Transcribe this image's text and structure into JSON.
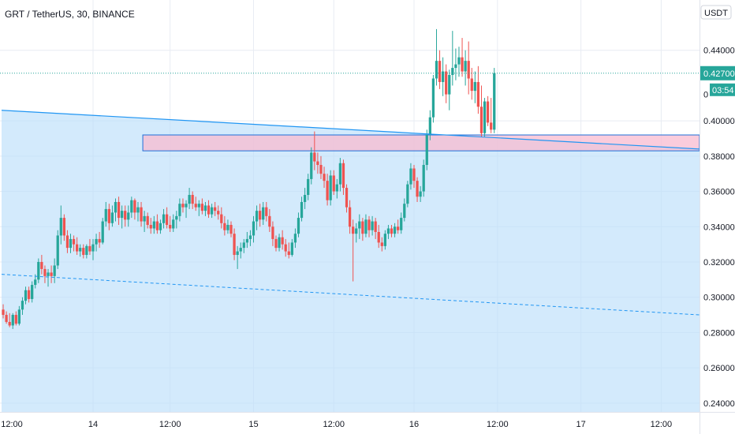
{
  "chart_data": {
    "type": "candlestick",
    "title": "GRT / TetherUS, 30, BINANCE",
    "currency_button": "USDT",
    "y_ticks": [
      "0.44000",
      "0.40000",
      "0.38000",
      "0.36000",
      "0.34000",
      "0.32000",
      "0.30000",
      "0.28000",
      "0.26000",
      "0.24000"
    ],
    "y_tick_values": [
      0.44,
      0.4,
      0.38,
      0.36,
      0.34,
      0.32,
      0.3,
      0.28,
      0.26,
      0.24
    ],
    "ylim": [
      0.235,
      0.4685
    ],
    "x_ticks": [
      "12:00",
      "14",
      "12:00",
      "15",
      "12:00",
      "16",
      "12:00",
      "17",
      "12:00"
    ],
    "x_tick_bars": [
      -1,
      28,
      52,
      78,
      103,
      128,
      154,
      180,
      205
    ],
    "bar_count_visible": 218,
    "last_price": "0.42700",
    "last_price_value": 0.427,
    "countdown": "03:54",
    "partial_price_label": "0",
    "colors": {
      "up": "#26a69a",
      "down": "#ef5350",
      "trendline": "#2196f3",
      "zone_fill": "#bbdefb",
      "resistance_fill": "#f8bbd0"
    },
    "resistance_zone": {
      "top": 0.392,
      "bottom": 0.383,
      "start_bar": 44
    },
    "trendline": {
      "start_bar": 0,
      "start_value": 0.406,
      "end_bar": 217,
      "end_value": 0.384
    },
    "support_line": {
      "start_bar": 0,
      "start_value": 0.313,
      "end_bar": 217,
      "end_value": 0.29
    },
    "candles": [
      [
        0.293,
        0.296,
        0.288,
        0.29
      ],
      [
        0.29,
        0.292,
        0.285,
        0.286
      ],
      [
        0.286,
        0.291,
        0.283,
        0.284
      ],
      [
        0.284,
        0.291,
        0.282,
        0.29
      ],
      [
        0.29,
        0.292,
        0.284,
        0.285
      ],
      [
        0.285,
        0.295,
        0.284,
        0.293
      ],
      [
        0.293,
        0.3,
        0.29,
        0.298
      ],
      [
        0.298,
        0.306,
        0.296,
        0.304
      ],
      [
        0.304,
        0.306,
        0.297,
        0.299
      ],
      [
        0.299,
        0.309,
        0.297,
        0.307
      ],
      [
        0.307,
        0.313,
        0.305,
        0.31
      ],
      [
        0.31,
        0.322,
        0.308,
        0.32
      ],
      [
        0.32,
        0.324,
        0.313,
        0.316
      ],
      [
        0.316,
        0.318,
        0.308,
        0.312
      ],
      [
        0.312,
        0.316,
        0.306,
        0.314
      ],
      [
        0.314,
        0.318,
        0.308,
        0.312
      ],
      [
        0.312,
        0.322,
        0.308,
        0.318
      ],
      [
        0.318,
        0.338,
        0.316,
        0.335
      ],
      [
        0.335,
        0.352,
        0.33,
        0.345
      ],
      [
        0.345,
        0.347,
        0.332,
        0.335
      ],
      [
        0.335,
        0.338,
        0.325,
        0.328
      ],
      [
        0.328,
        0.336,
        0.325,
        0.333
      ],
      [
        0.333,
        0.335,
        0.326,
        0.33
      ],
      [
        0.33,
        0.334,
        0.324,
        0.326
      ],
      [
        0.326,
        0.33,
        0.323,
        0.328
      ],
      [
        0.328,
        0.33,
        0.322,
        0.324
      ],
      [
        0.324,
        0.33,
        0.322,
        0.329
      ],
      [
        0.329,
        0.333,
        0.324,
        0.326
      ],
      [
        0.326,
        0.333,
        0.321,
        0.33
      ],
      [
        0.33,
        0.336,
        0.326,
        0.333
      ],
      [
        0.333,
        0.337,
        0.328,
        0.331
      ],
      [
        0.331,
        0.345,
        0.33,
        0.343
      ],
      [
        0.343,
        0.354,
        0.34,
        0.35
      ],
      [
        0.35,
        0.353,
        0.338,
        0.342
      ],
      [
        0.342,
        0.352,
        0.34,
        0.348
      ],
      [
        0.348,
        0.356,
        0.343,
        0.354
      ],
      [
        0.354,
        0.357,
        0.341,
        0.345
      ],
      [
        0.345,
        0.352,
        0.339,
        0.349
      ],
      [
        0.349,
        0.352,
        0.34,
        0.344
      ],
      [
        0.344,
        0.352,
        0.34,
        0.348
      ],
      [
        0.348,
        0.357,
        0.345,
        0.355
      ],
      [
        0.355,
        0.356,
        0.344,
        0.348
      ],
      [
        0.348,
        0.354,
        0.343,
        0.351
      ],
      [
        0.351,
        0.354,
        0.34,
        0.343
      ],
      [
        0.343,
        0.349,
        0.337,
        0.346
      ],
      [
        0.346,
        0.348,
        0.339,
        0.341
      ],
      [
        0.341,
        0.345,
        0.336,
        0.339
      ],
      [
        0.339,
        0.346,
        0.336,
        0.343
      ],
      [
        0.343,
        0.347,
        0.336,
        0.338
      ],
      [
        0.338,
        0.344,
        0.336,
        0.342
      ],
      [
        0.342,
        0.35,
        0.339,
        0.347
      ],
      [
        0.347,
        0.351,
        0.339,
        0.341
      ],
      [
        0.341,
        0.346,
        0.337,
        0.339
      ],
      [
        0.339,
        0.347,
        0.337,
        0.344
      ],
      [
        0.344,
        0.349,
        0.339,
        0.346
      ],
      [
        0.346,
        0.356,
        0.343,
        0.353
      ],
      [
        0.353,
        0.356,
        0.348,
        0.351
      ],
      [
        0.351,
        0.355,
        0.345,
        0.353
      ],
      [
        0.353,
        0.362,
        0.35,
        0.358
      ],
      [
        0.358,
        0.36,
        0.35,
        0.353
      ],
      [
        0.353,
        0.357,
        0.349,
        0.351
      ],
      [
        0.351,
        0.355,
        0.346,
        0.353
      ],
      [
        0.353,
        0.356,
        0.347,
        0.349
      ],
      [
        0.349,
        0.354,
        0.346,
        0.352
      ],
      [
        0.352,
        0.355,
        0.345,
        0.347
      ],
      [
        0.347,
        0.353,
        0.345,
        0.351
      ],
      [
        0.351,
        0.354,
        0.346,
        0.349
      ],
      [
        0.349,
        0.352,
        0.344,
        0.347
      ],
      [
        0.347,
        0.351,
        0.339,
        0.342
      ],
      [
        0.342,
        0.346,
        0.335,
        0.338
      ],
      [
        0.338,
        0.344,
        0.336,
        0.341
      ],
      [
        0.341,
        0.343,
        0.334,
        0.336
      ],
      [
        0.336,
        0.339,
        0.321,
        0.324
      ],
      [
        0.324,
        0.329,
        0.316,
        0.326
      ],
      [
        0.326,
        0.331,
        0.322,
        0.328
      ],
      [
        0.328,
        0.333,
        0.325,
        0.331
      ],
      [
        0.331,
        0.337,
        0.328,
        0.333
      ],
      [
        0.333,
        0.338,
        0.329,
        0.335
      ],
      [
        0.335,
        0.346,
        0.331,
        0.343
      ],
      [
        0.343,
        0.352,
        0.338,
        0.349
      ],
      [
        0.349,
        0.353,
        0.34,
        0.344
      ],
      [
        0.344,
        0.354,
        0.341,
        0.351
      ],
      [
        0.351,
        0.354,
        0.343,
        0.346
      ],
      [
        0.346,
        0.35,
        0.337,
        0.34
      ],
      [
        0.34,
        0.343,
        0.329,
        0.333
      ],
      [
        0.333,
        0.335,
        0.326,
        0.328
      ],
      [
        0.328,
        0.336,
        0.326,
        0.334
      ],
      [
        0.334,
        0.338,
        0.327,
        0.33
      ],
      [
        0.33,
        0.333,
        0.323,
        0.326
      ],
      [
        0.326,
        0.331,
        0.322,
        0.324
      ],
      [
        0.324,
        0.333,
        0.323,
        0.331
      ],
      [
        0.331,
        0.339,
        0.328,
        0.336
      ],
      [
        0.336,
        0.348,
        0.334,
        0.345
      ],
      [
        0.345,
        0.357,
        0.343,
        0.354
      ],
      [
        0.354,
        0.362,
        0.35,
        0.358
      ],
      [
        0.358,
        0.37,
        0.355,
        0.367
      ],
      [
        0.367,
        0.385,
        0.364,
        0.382
      ],
      [
        0.382,
        0.394,
        0.372,
        0.377
      ],
      [
        0.377,
        0.382,
        0.37,
        0.375
      ],
      [
        0.375,
        0.38,
        0.367,
        0.37
      ],
      [
        0.37,
        0.374,
        0.362,
        0.366
      ],
      [
        0.366,
        0.37,
        0.352,
        0.355
      ],
      [
        0.355,
        0.372,
        0.352,
        0.369
      ],
      [
        0.369,
        0.372,
        0.358,
        0.36
      ],
      [
        0.36,
        0.367,
        0.356,
        0.364
      ],
      [
        0.364,
        0.379,
        0.36,
        0.376
      ],
      [
        0.376,
        0.378,
        0.358,
        0.362
      ],
      [
        0.362,
        0.364,
        0.348,
        0.351
      ],
      [
        0.351,
        0.355,
        0.336,
        0.34
      ],
      [
        0.34,
        0.344,
        0.309,
        0.336
      ],
      [
        0.336,
        0.342,
        0.331,
        0.339
      ],
      [
        0.339,
        0.347,
        0.333,
        0.343
      ],
      [
        0.343,
        0.345,
        0.332,
        0.336
      ],
      [
        0.336,
        0.347,
        0.334,
        0.344
      ],
      [
        0.344,
        0.346,
        0.334,
        0.338
      ],
      [
        0.338,
        0.346,
        0.335,
        0.343
      ],
      [
        0.343,
        0.345,
        0.333,
        0.337
      ],
      [
        0.337,
        0.341,
        0.328,
        0.331
      ],
      [
        0.331,
        0.334,
        0.326,
        0.329
      ],
      [
        0.329,
        0.338,
        0.327,
        0.336
      ],
      [
        0.336,
        0.341,
        0.333,
        0.339
      ],
      [
        0.339,
        0.341,
        0.334,
        0.336
      ],
      [
        0.336,
        0.342,
        0.334,
        0.34
      ],
      [
        0.34,
        0.344,
        0.336,
        0.338
      ],
      [
        0.338,
        0.348,
        0.336,
        0.345
      ],
      [
        0.345,
        0.356,
        0.343,
        0.353
      ],
      [
        0.353,
        0.366,
        0.351,
        0.364
      ],
      [
        0.364,
        0.376,
        0.361,
        0.373
      ],
      [
        0.373,
        0.375,
        0.362,
        0.366
      ],
      [
        0.366,
        0.368,
        0.354,
        0.357
      ],
      [
        0.357,
        0.363,
        0.354,
        0.36
      ],
      [
        0.36,
        0.378,
        0.357,
        0.375
      ],
      [
        0.375,
        0.395,
        0.372,
        0.392
      ],
      [
        0.392,
        0.406,
        0.389,
        0.402
      ],
      [
        0.402,
        0.426,
        0.399,
        0.424
      ],
      [
        0.424,
        0.452,
        0.42,
        0.434
      ],
      [
        0.434,
        0.44,
        0.418,
        0.422
      ],
      [
        0.422,
        0.436,
        0.414,
        0.428
      ],
      [
        0.428,
        0.432,
        0.41,
        0.415
      ],
      [
        0.415,
        0.429,
        0.406,
        0.426
      ],
      [
        0.426,
        0.451,
        0.42,
        0.43
      ],
      [
        0.43,
        0.441,
        0.423,
        0.432
      ],
      [
        0.432,
        0.442,
        0.425,
        0.436
      ],
      [
        0.436,
        0.447,
        0.425,
        0.428
      ],
      [
        0.428,
        0.44,
        0.42,
        0.434
      ],
      [
        0.434,
        0.445,
        0.415,
        0.424
      ],
      [
        0.424,
        0.43,
        0.412,
        0.417
      ],
      [
        0.417,
        0.428,
        0.41,
        0.422
      ],
      [
        0.422,
        0.431,
        0.404,
        0.408
      ],
      [
        0.408,
        0.42,
        0.391,
        0.393
      ],
      [
        0.393,
        0.413,
        0.391,
        0.411
      ],
      [
        0.411,
        0.414,
        0.397,
        0.399
      ],
      [
        0.399,
        0.413,
        0.393,
        0.395
      ],
      [
        0.395,
        0.43,
        0.393,
        0.427
      ]
    ]
  }
}
